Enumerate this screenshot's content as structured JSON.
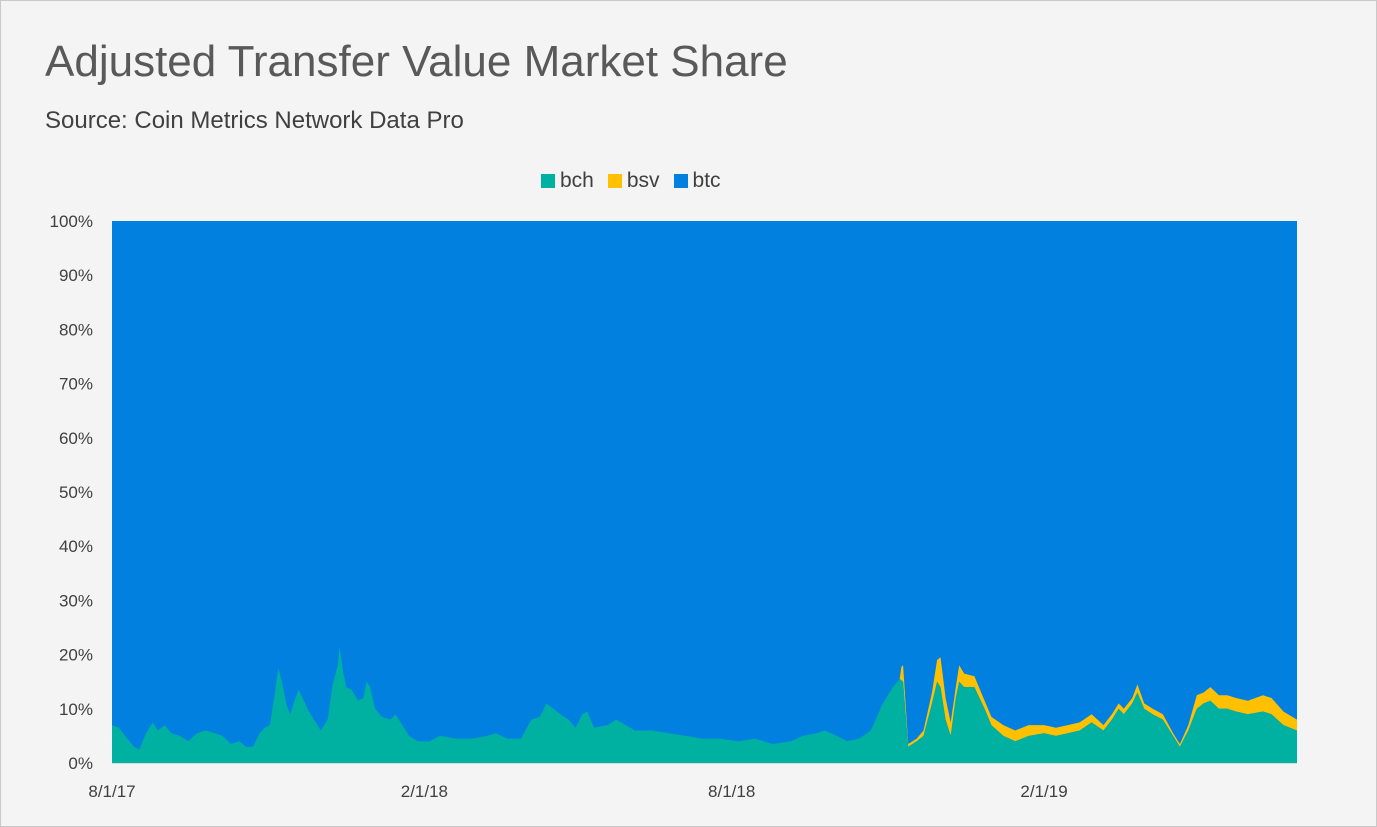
{
  "chart_data": {
    "type": "area",
    "stacked": true,
    "percent_stacked": true,
    "title": "Adjusted Transfer Value Market Share",
    "subtitle": "Source: Coin Metrics Network Data Pro",
    "xlabel": "",
    "ylabel": "",
    "legend_position": "top",
    "grid": false,
    "x_range": [
      "2017-08-01",
      "2019-06-30"
    ],
    "ylim": [
      0,
      100
    ],
    "y_ticks": [
      "0%",
      "10%",
      "20%",
      "30%",
      "40%",
      "50%",
      "60%",
      "70%",
      "80%",
      "90%",
      "100%"
    ],
    "x_ticks": [
      {
        "date": "2017-08-01",
        "label": "8/1/17"
      },
      {
        "date": "2018-02-01",
        "label": "2/1/18"
      },
      {
        "date": "2018-08-01",
        "label": "8/1/18"
      },
      {
        "date": "2019-02-01",
        "label": "2/1/19"
      }
    ],
    "series": [
      {
        "name": "bch",
        "color": "#00b0a0",
        "points": [
          [
            "2017-08-01",
            7
          ],
          [
            "2017-08-05",
            6.5
          ],
          [
            "2017-08-10",
            4.5
          ],
          [
            "2017-08-14",
            3
          ],
          [
            "2017-08-17",
            2.5
          ],
          [
            "2017-08-21",
            5.5
          ],
          [
            "2017-08-25",
            7.5
          ],
          [
            "2017-08-28",
            6
          ],
          [
            "2017-09-01",
            7
          ],
          [
            "2017-09-05",
            5.5
          ],
          [
            "2017-09-10",
            5
          ],
          [
            "2017-09-15",
            4
          ],
          [
            "2017-09-20",
            5.5
          ],
          [
            "2017-09-25",
            6
          ],
          [
            "2017-10-01",
            5.5
          ],
          [
            "2017-10-05",
            5
          ],
          [
            "2017-10-10",
            3.5
          ],
          [
            "2017-10-15",
            4
          ],
          [
            "2017-10-19",
            3
          ],
          [
            "2017-10-23",
            3
          ],
          [
            "2017-10-27",
            5.5
          ],
          [
            "2017-10-30",
            6.5
          ],
          [
            "2017-11-02",
            7
          ],
          [
            "2017-11-05",
            13
          ],
          [
            "2017-11-07",
            17.5
          ],
          [
            "2017-11-09",
            15
          ],
          [
            "2017-11-12",
            10.5
          ],
          [
            "2017-11-14",
            9
          ],
          [
            "2017-11-17",
            12
          ],
          [
            "2017-11-19",
            13.5
          ],
          [
            "2017-11-22",
            11.5
          ],
          [
            "2017-11-25",
            9.5
          ],
          [
            "2017-11-28",
            8
          ],
          [
            "2017-12-02",
            6
          ],
          [
            "2017-12-06",
            8
          ],
          [
            "2017-12-09",
            14.5
          ],
          [
            "2017-12-12",
            18
          ],
          [
            "2017-12-13",
            21.5
          ],
          [
            "2017-12-15",
            17
          ],
          [
            "2017-12-17",
            14
          ],
          [
            "2017-12-20",
            13.5
          ],
          [
            "2017-12-24",
            11.5
          ],
          [
            "2017-12-27",
            12
          ],
          [
            "2017-12-29",
            15
          ],
          [
            "2017-12-31",
            14
          ],
          [
            "2018-01-03",
            10
          ],
          [
            "2018-01-07",
            8.5
          ],
          [
            "2018-01-12",
            8
          ],
          [
            "2018-01-15",
            9
          ],
          [
            "2018-01-18",
            7.5
          ],
          [
            "2018-01-23",
            5
          ],
          [
            "2018-01-28",
            4
          ],
          [
            "2018-02-04",
            4
          ],
          [
            "2018-02-10",
            5
          ],
          [
            "2018-02-20",
            4.5
          ],
          [
            "2018-03-01",
            4.5
          ],
          [
            "2018-03-10",
            5
          ],
          [
            "2018-03-15",
            5.5
          ],
          [
            "2018-03-22",
            4.5
          ],
          [
            "2018-03-30",
            4.5
          ],
          [
            "2018-04-05",
            8
          ],
          [
            "2018-04-10",
            8.5
          ],
          [
            "2018-04-14",
            11
          ],
          [
            "2018-04-18",
            10
          ],
          [
            "2018-04-22",
            9
          ],
          [
            "2018-04-27",
            8
          ],
          [
            "2018-05-01",
            6.5
          ],
          [
            "2018-05-05",
            9
          ],
          [
            "2018-05-08",
            9.5
          ],
          [
            "2018-05-12",
            6.5
          ],
          [
            "2018-05-20",
            7
          ],
          [
            "2018-05-25",
            8
          ],
          [
            "2018-05-28",
            7.5
          ],
          [
            "2018-06-05",
            6
          ],
          [
            "2018-06-15",
            6
          ],
          [
            "2018-06-25",
            5.5
          ],
          [
            "2018-07-05",
            5
          ],
          [
            "2018-07-15",
            4.5
          ],
          [
            "2018-07-25",
            4.5
          ],
          [
            "2018-08-05",
            4
          ],
          [
            "2018-08-15",
            4.5
          ],
          [
            "2018-08-25",
            3.5
          ],
          [
            "2018-09-05",
            4
          ],
          [
            "2018-09-12",
            5
          ],
          [
            "2018-09-20",
            5.5
          ],
          [
            "2018-09-25",
            6
          ],
          [
            "2018-10-02",
            5
          ],
          [
            "2018-10-08",
            4
          ],
          [
            "2018-10-15",
            4.5
          ],
          [
            "2018-10-22",
            6
          ],
          [
            "2018-10-29",
            11
          ],
          [
            "2018-11-04",
            14
          ],
          [
            "2018-11-08",
            15.5
          ],
          [
            "2018-11-10",
            15
          ],
          [
            "2018-11-13",
            3
          ],
          [
            "2018-11-18",
            4
          ],
          [
            "2018-11-22",
            5
          ],
          [
            "2018-11-27",
            11
          ],
          [
            "2018-11-30",
            15
          ],
          [
            "2018-12-02",
            14
          ],
          [
            "2018-12-05",
            8
          ],
          [
            "2018-12-08",
            5
          ],
          [
            "2018-12-11",
            12
          ],
          [
            "2018-12-13",
            15
          ],
          [
            "2018-12-16",
            14
          ],
          [
            "2018-12-22",
            14
          ],
          [
            "2018-12-28",
            10
          ],
          [
            "2019-01-01",
            7
          ],
          [
            "2019-01-08",
            5
          ],
          [
            "2019-01-15",
            4
          ],
          [
            "2019-01-23",
            5
          ],
          [
            "2019-02-01",
            5.5
          ],
          [
            "2019-02-08",
            5
          ],
          [
            "2019-02-15",
            5.5
          ],
          [
            "2019-02-22",
            6
          ],
          [
            "2019-03-01",
            7.5
          ],
          [
            "2019-03-08",
            6
          ],
          [
            "2019-03-13",
            8
          ],
          [
            "2019-03-17",
            10
          ],
          [
            "2019-03-20",
            9
          ],
          [
            "2019-03-25",
            11
          ],
          [
            "2019-03-28",
            13
          ],
          [
            "2019-04-01",
            10
          ],
          [
            "2019-04-06",
            9
          ],
          [
            "2019-04-12",
            8
          ],
          [
            "2019-04-18",
            5
          ],
          [
            "2019-04-22",
            3
          ],
          [
            "2019-04-27",
            6
          ],
          [
            "2019-05-02",
            10
          ],
          [
            "2019-05-06",
            11
          ],
          [
            "2019-05-10",
            11.5
          ],
          [
            "2019-05-15",
            10
          ],
          [
            "2019-05-20",
            10
          ],
          [
            "2019-05-25",
            9.5
          ],
          [
            "2019-06-01",
            9
          ],
          [
            "2019-06-10",
            9.5
          ],
          [
            "2019-06-15",
            9
          ],
          [
            "2019-06-22",
            7
          ],
          [
            "2019-06-30",
            6
          ]
        ]
      },
      {
        "name": "bsv",
        "color": "#ffc000",
        "points": [
          [
            "2018-11-08",
            0
          ],
          [
            "2018-11-09",
            2.5
          ],
          [
            "2018-11-10",
            3
          ],
          [
            "2018-11-13",
            0.5
          ],
          [
            "2018-11-18",
            0.5
          ],
          [
            "2018-11-22",
            1
          ],
          [
            "2018-11-27",
            2
          ],
          [
            "2018-11-30",
            4
          ],
          [
            "2018-12-02",
            5.5
          ],
          [
            "2018-12-05",
            4
          ],
          [
            "2018-12-08",
            2.5
          ],
          [
            "2018-12-11",
            2
          ],
          [
            "2018-12-13",
            3
          ],
          [
            "2018-12-16",
            2.5
          ],
          [
            "2018-12-22",
            2
          ],
          [
            "2018-12-28",
            1.5
          ],
          [
            "2019-01-01",
            1.5
          ],
          [
            "2019-01-08",
            2
          ],
          [
            "2019-01-15",
            2
          ],
          [
            "2019-01-23",
            2
          ],
          [
            "2019-02-01",
            1.5
          ],
          [
            "2019-02-08",
            1.5
          ],
          [
            "2019-02-15",
            1.5
          ],
          [
            "2019-02-22",
            1.5
          ],
          [
            "2019-03-01",
            1.5
          ],
          [
            "2019-03-08",
            1
          ],
          [
            "2019-03-13",
            1
          ],
          [
            "2019-03-17",
            1
          ],
          [
            "2019-03-20",
            1
          ],
          [
            "2019-03-25",
            1
          ],
          [
            "2019-03-28",
            1.5
          ],
          [
            "2019-04-01",
            1
          ],
          [
            "2019-04-06",
            1
          ],
          [
            "2019-04-12",
            1
          ],
          [
            "2019-04-18",
            0.5
          ],
          [
            "2019-04-22",
            0.5
          ],
          [
            "2019-04-27",
            1
          ],
          [
            "2019-05-02",
            2.5
          ],
          [
            "2019-05-06",
            2
          ],
          [
            "2019-05-10",
            2.5
          ],
          [
            "2019-05-15",
            2.5
          ],
          [
            "2019-05-20",
            2.5
          ],
          [
            "2019-05-25",
            2.5
          ],
          [
            "2019-06-01",
            2.5
          ],
          [
            "2019-06-10",
            3
          ],
          [
            "2019-06-15",
            3
          ],
          [
            "2019-06-22",
            2.5
          ],
          [
            "2019-06-30",
            2
          ]
        ]
      },
      {
        "name": "btc",
        "color": "#0280e0",
        "note": "remainder to 100%"
      }
    ]
  }
}
